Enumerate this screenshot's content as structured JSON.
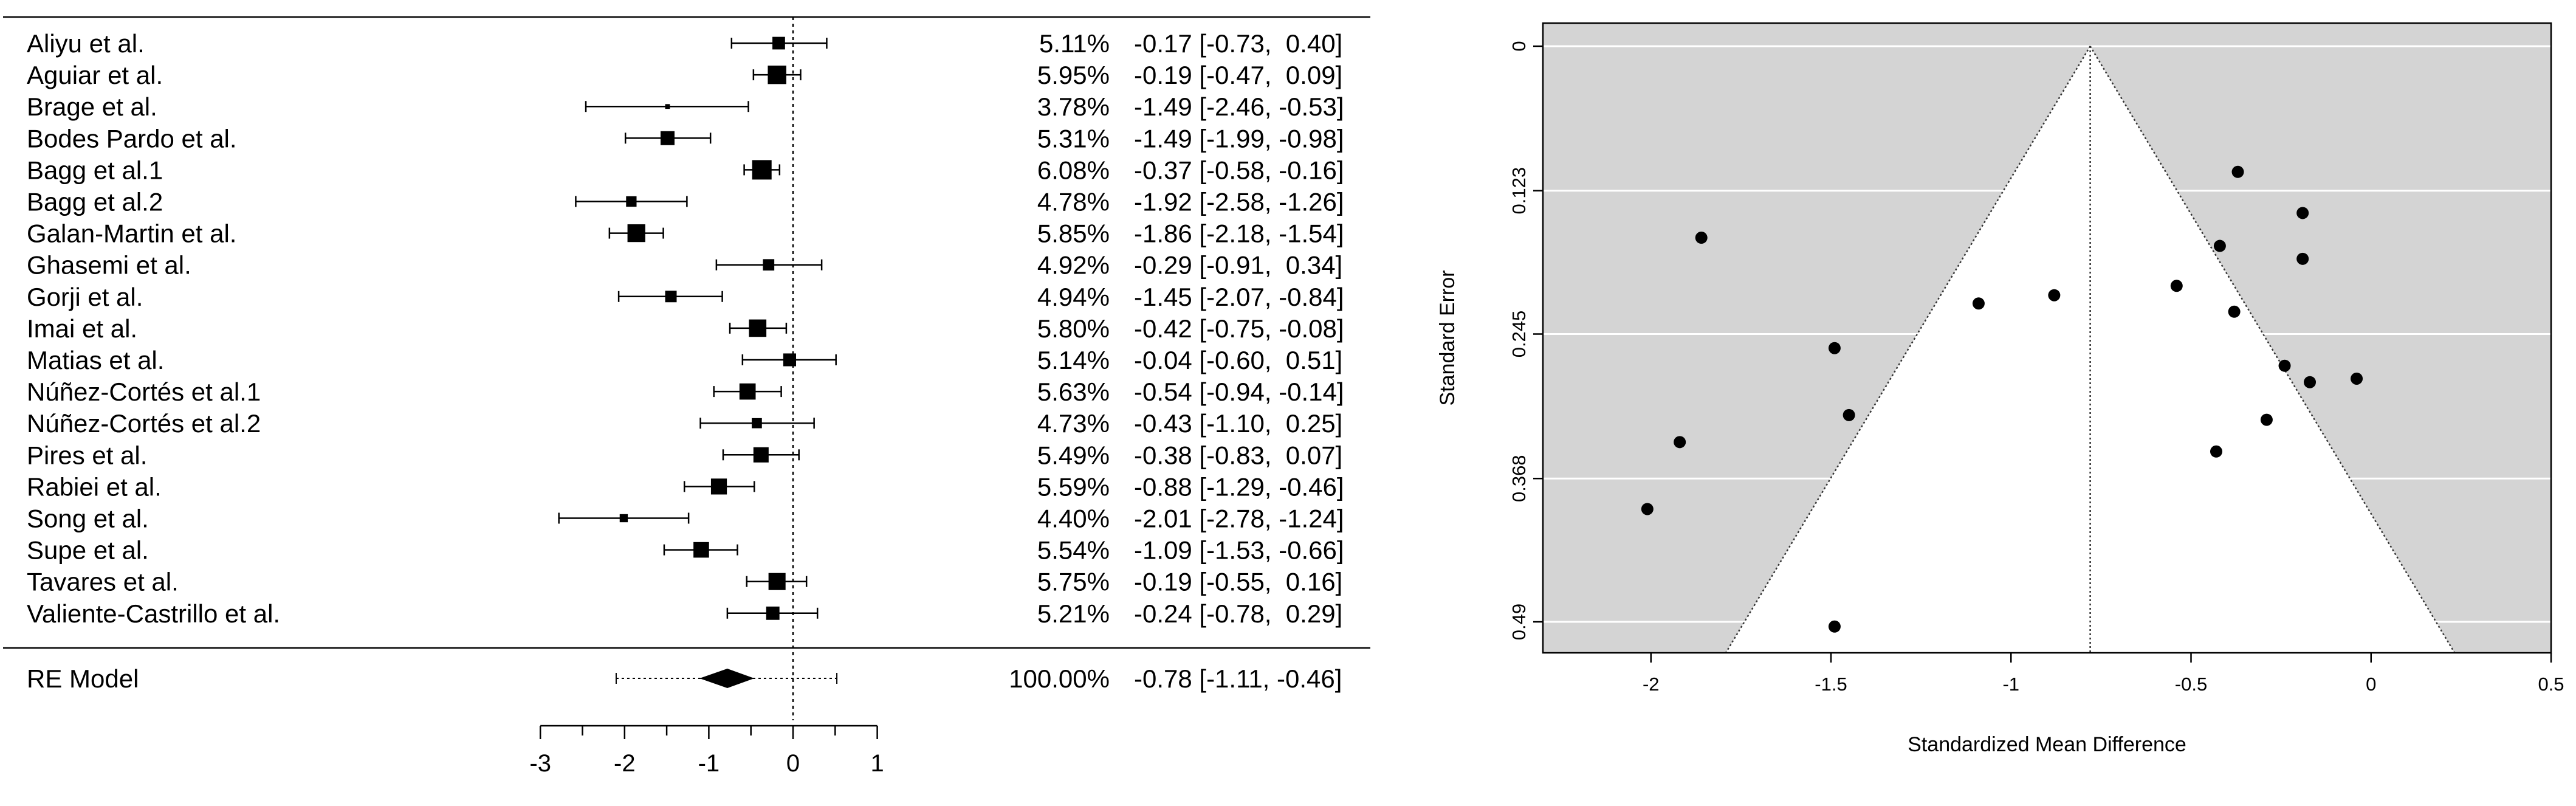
{
  "chart_data": [
    {
      "type": "forest",
      "studies": [
        {
          "label": "Aliyu et al.",
          "weight": "5.11%",
          "est": -0.17,
          "lo": -0.73,
          "hi": 0.4,
          "ci_text": "-0.17 [-0.73,  0.40]"
        },
        {
          "label": "Aguiar et al.",
          "weight": "5.95%",
          "est": -0.19,
          "lo": -0.47,
          "hi": 0.09,
          "ci_text": "-0.19 [-0.47,  0.09]"
        },
        {
          "label": "Brage et al.",
          "weight": "3.78%",
          "est": -1.49,
          "lo": -2.46,
          "hi": -0.53,
          "ci_text": "-1.49 [-2.46, -0.53]"
        },
        {
          "label": "Bodes Pardo et al.",
          "weight": "5.31%",
          "est": -1.49,
          "lo": -1.99,
          "hi": -0.98,
          "ci_text": "-1.49 [-1.99, -0.98]"
        },
        {
          "label": "Bagg et al.1",
          "weight": "6.08%",
          "est": -0.37,
          "lo": -0.58,
          "hi": -0.16,
          "ci_text": "-0.37 [-0.58, -0.16]"
        },
        {
          "label": "Bagg et al.2",
          "weight": "4.78%",
          "est": -1.92,
          "lo": -2.58,
          "hi": -1.26,
          "ci_text": "-1.92 [-2.58, -1.26]"
        },
        {
          "label": "Galan-Martin et al.",
          "weight": "5.85%",
          "est": -1.86,
          "lo": -2.18,
          "hi": -1.54,
          "ci_text": "-1.86 [-2.18, -1.54]"
        },
        {
          "label": "Ghasemi et al.",
          "weight": "4.92%",
          "est": -0.29,
          "lo": -0.91,
          "hi": 0.34,
          "ci_text": "-0.29 [-0.91,  0.34]"
        },
        {
          "label": "Gorji et al.",
          "weight": "4.94%",
          "est": -1.45,
          "lo": -2.07,
          "hi": -0.84,
          "ci_text": "-1.45 [-2.07, -0.84]"
        },
        {
          "label": "Imai et al.",
          "weight": "5.80%",
          "est": -0.42,
          "lo": -0.75,
          "hi": -0.08,
          "ci_text": "-0.42 [-0.75, -0.08]"
        },
        {
          "label": "Matias et al.",
          "weight": "5.14%",
          "est": -0.04,
          "lo": -0.6,
          "hi": 0.51,
          "ci_text": "-0.04 [-0.60,  0.51]"
        },
        {
          "label": "Núñez-Cortés et al.1",
          "weight": "5.63%",
          "est": -0.54,
          "lo": -0.94,
          "hi": -0.14,
          "ci_text": "-0.54 [-0.94, -0.14]"
        },
        {
          "label": "Núñez-Cortés et al.2",
          "weight": "4.73%",
          "est": -0.43,
          "lo": -1.1,
          "hi": 0.25,
          "ci_text": "-0.43 [-1.10,  0.25]"
        },
        {
          "label": "Pires et al.",
          "weight": "5.49%",
          "est": -0.38,
          "lo": -0.83,
          "hi": 0.07,
          "ci_text": "-0.38 [-0.83,  0.07]"
        },
        {
          "label": "Rabiei et al.",
          "weight": "5.59%",
          "est": -0.88,
          "lo": -1.29,
          "hi": -0.46,
          "ci_text": "-0.88 [-1.29, -0.46]"
        },
        {
          "label": "Song et al.",
          "weight": "4.40%",
          "est": -2.01,
          "lo": -2.78,
          "hi": -1.24,
          "ci_text": "-2.01 [-2.78, -1.24]"
        },
        {
          "label": "Supe et al.",
          "weight": "5.54%",
          "est": -1.09,
          "lo": -1.53,
          "hi": -0.66,
          "ci_text": "-1.09 [-1.53, -0.66]"
        },
        {
          "label": "Tavares et al.",
          "weight": "5.75%",
          "est": -0.19,
          "lo": -0.55,
          "hi": 0.16,
          "ci_text": "-0.19 [-0.55,  0.16]"
        },
        {
          "label": "Valiente-Castrillo et al.",
          "weight": "5.21%",
          "est": -0.24,
          "lo": -0.78,
          "hi": 0.29,
          "ci_text": "-0.24 [-0.78,  0.29]"
        }
      ],
      "summary": {
        "label": "RE Model",
        "weight": "100.00%",
        "est": -0.78,
        "lo": -1.11,
        "hi": -0.46,
        "pi_lo": -2.1,
        "pi_hi": 0.52,
        "ci_text": "-0.78 [-1.11, -0.46]"
      },
      "x_ticks": [
        -3,
        -2,
        -1,
        0,
        1
      ],
      "x_tick_labels": [
        "-3",
        "-2",
        "-1",
        "0",
        "1"
      ],
      "xlim": [
        -3,
        1
      ],
      "reference_line": 0
    },
    {
      "type": "scatter",
      "xlabel": "Standardized Mean Difference",
      "ylabel": "Standard Error",
      "xlim": [
        -2.3,
        0.5
      ],
      "ylim": [
        0.49,
        0
      ],
      "x_ticks": [
        -2,
        -1.5,
        -1,
        -0.5,
        0,
        0.5
      ],
      "x_tick_labels": [
        "-2",
        "-1.5",
        "-1",
        "-0.5",
        "0",
        "0.5"
      ],
      "y_ticks": [
        0,
        0.123,
        0.245,
        0.368,
        0.49
      ],
      "y_tick_labels": [
        "0",
        "0.123",
        "0.245",
        "0.368",
        "0.49"
      ],
      "center": -0.78,
      "background_color": "#d4d4d4",
      "points": [
        {
          "x": -0.37,
          "y": 0.107
        },
        {
          "x": -0.19,
          "y": 0.142
        },
        {
          "x": -1.86,
          "y": 0.163
        },
        {
          "x": -0.42,
          "y": 0.17
        },
        {
          "x": -0.19,
          "y": 0.181
        },
        {
          "x": -0.54,
          "y": 0.204
        },
        {
          "x": -0.88,
          "y": 0.212
        },
        {
          "x": -1.09,
          "y": 0.219
        },
        {
          "x": -0.38,
          "y": 0.226
        },
        {
          "x": -1.49,
          "y": 0.257
        },
        {
          "x": -0.24,
          "y": 0.272
        },
        {
          "x": -0.04,
          "y": 0.283
        },
        {
          "x": -0.17,
          "y": 0.286
        },
        {
          "x": -1.45,
          "y": 0.314
        },
        {
          "x": -0.29,
          "y": 0.318
        },
        {
          "x": -1.92,
          "y": 0.337
        },
        {
          "x": -0.43,
          "y": 0.345
        },
        {
          "x": -2.01,
          "y": 0.394
        },
        {
          "x": -1.49,
          "y": 0.494
        }
      ]
    }
  ]
}
